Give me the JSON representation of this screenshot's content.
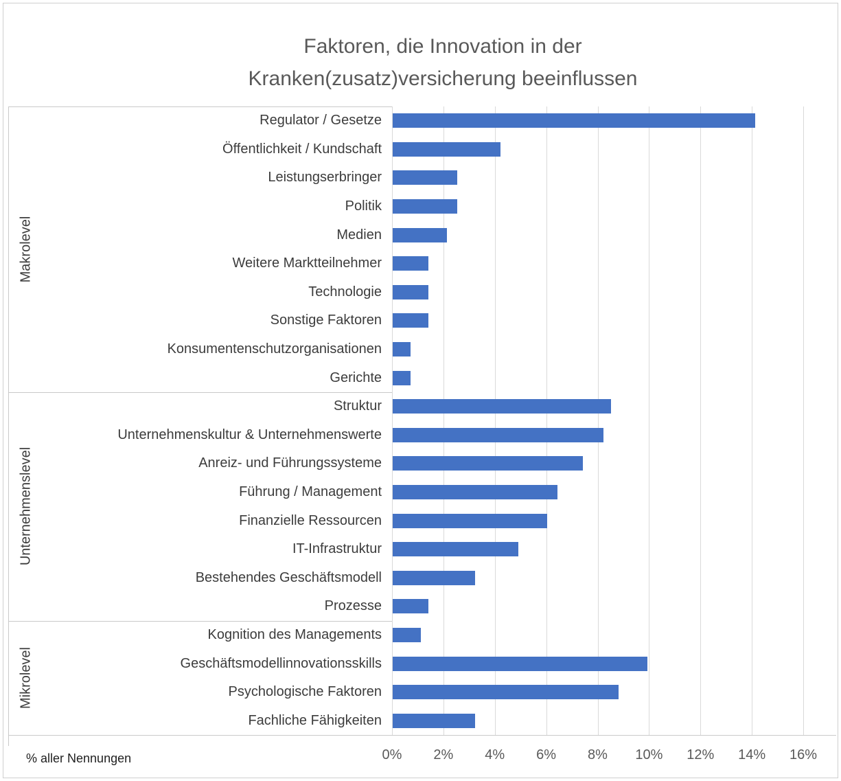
{
  "title": {
    "line1": "Faktoren, die Innovation in der",
    "line2": "Kranken(zusatz)versicherung beeinflussen"
  },
  "footer": {
    "axis_note": "% aller Nennungen"
  },
  "chart_data": {
    "type": "bar",
    "orientation": "horizontal",
    "title": "Faktoren, die Innovation in der Kranken(zusatz)versicherung beeinflussen",
    "xlabel": "% aller Nennungen",
    "ylabel": "",
    "legend": "none",
    "grid": "vertical",
    "xlim": [
      0,
      16
    ],
    "x_tick_step": 2,
    "x_tick_labels": [
      "0%",
      "2%",
      "4%",
      "6%",
      "8%",
      "10%",
      "12%",
      "14%",
      "16%"
    ],
    "bar_color": "#4472C4",
    "gridline_color": "#d9d9d9",
    "groups": [
      {
        "label": "Makrolevel",
        "categories": [
          "Regulator / Gesetze",
          "Öffentlichkeit / Kundschaft",
          "Leistungserbringer",
          "Politik",
          "Medien",
          "Weitere Marktteilnehmer",
          "Technologie",
          "Sonstige Faktoren",
          "Konsumentenschutzorganisationen",
          "Gerichte"
        ],
        "values": [
          14.1,
          4.2,
          2.5,
          2.5,
          2.1,
          1.4,
          1.4,
          1.4,
          0.7,
          0.7
        ]
      },
      {
        "label": "Unternehmenslevel",
        "categories": [
          "Struktur",
          "Unternehmenskultur & Unternehmenswerte",
          "Anreiz- und Führungssysteme",
          "Führung / Management",
          "Finanzielle Ressourcen",
          "IT-Infrastruktur",
          "Bestehendes Geschäftsmodell",
          "Prozesse"
        ],
        "values": [
          8.5,
          8.2,
          7.4,
          6.4,
          6.0,
          4.9,
          3.2,
          1.4
        ]
      },
      {
        "label": "Mikrolevel",
        "categories": [
          "Kognition des Managements",
          "Geschäftsmodellinnovationsskills",
          "Psychologische Faktoren",
          "Fachliche Fähigkeiten"
        ],
        "values": [
          1.1,
          9.9,
          8.8,
          3.2
        ]
      }
    ]
  }
}
